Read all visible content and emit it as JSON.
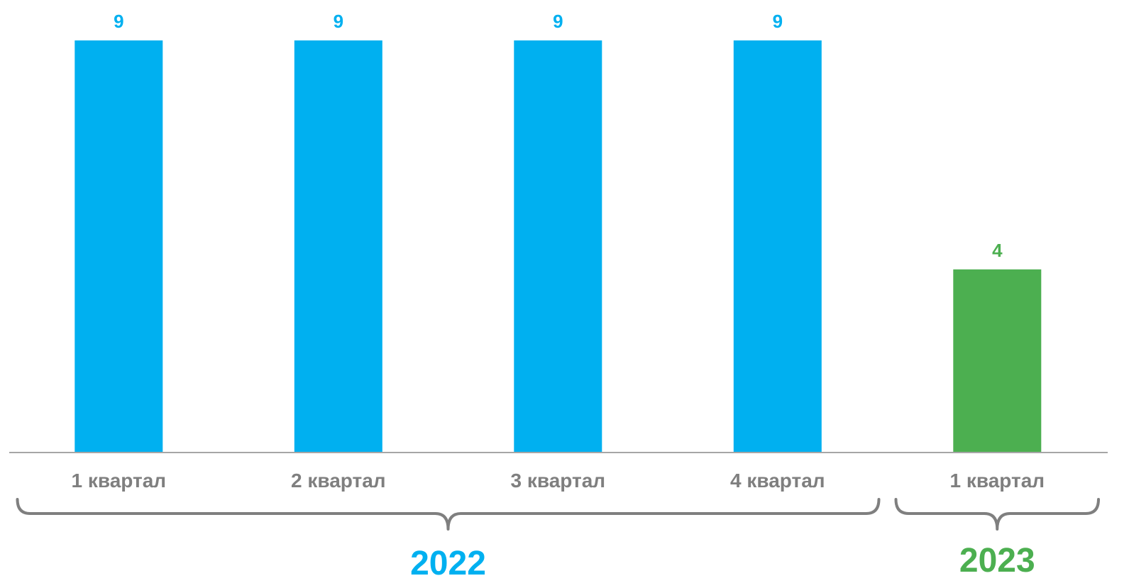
{
  "chart_data": {
    "type": "bar",
    "categories": [
      "1 квартал",
      "2 квартал",
      "3 квартал",
      "4 квартал",
      "1 квартал"
    ],
    "values": [
      9,
      9,
      9,
      9,
      4
    ],
    "groups": [
      {
        "label": "2022",
        "categories": [
          0,
          1,
          2,
          3
        ],
        "color": "#00b0f0"
      },
      {
        "label": "2023",
        "categories": [
          4
        ],
        "color": "#4caf50"
      }
    ],
    "colors": [
      "#00b0f0",
      "#00b0f0",
      "#00b0f0",
      "#00b0f0",
      "#4caf50"
    ],
    "ylim": [
      0,
      9
    ],
    "grid": false,
    "data_labels": true,
    "title": "",
    "xlabel": "",
    "ylabel": ""
  }
}
